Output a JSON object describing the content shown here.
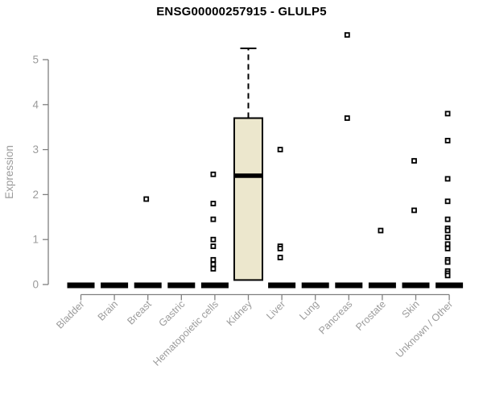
{
  "chart_data": {
    "type": "boxplot",
    "title": "ENSG00000257915 - GLULP5",
    "ylabel": "Expression",
    "xlabel": "",
    "ylim": [
      0,
      5.6
    ],
    "yticks": [
      0,
      1,
      2,
      3,
      4,
      5
    ],
    "grid": false,
    "legend": "none",
    "categories": [
      "Bladder",
      "Brain",
      "Breast",
      "Gastric",
      "Hematopoietic cells",
      "Kidney",
      "Liver",
      "Lung",
      "Pancreas",
      "Prostate",
      "Skin",
      "Unknown / Other"
    ],
    "series": [
      {
        "category": "Bladder",
        "q1": 0,
        "median": 0,
        "q3": 0,
        "whisker_low": 0,
        "whisker_high": 0,
        "outliers": []
      },
      {
        "category": "Brain",
        "q1": 0,
        "median": 0,
        "q3": 0,
        "whisker_low": 0,
        "whisker_high": 0,
        "outliers": []
      },
      {
        "category": "Breast",
        "q1": 0,
        "median": 0,
        "q3": 0,
        "whisker_low": 0,
        "whisker_high": 0,
        "outliers": [
          1.9
        ]
      },
      {
        "category": "Gastric",
        "q1": 0,
        "median": 0,
        "q3": 0,
        "whisker_low": 0,
        "whisker_high": 0,
        "outliers": []
      },
      {
        "category": "Hematopoietic cells",
        "q1": 0,
        "median": 0,
        "q3": 0,
        "whisker_low": 0,
        "whisker_high": 0,
        "outliers": [
          2.45,
          1.8,
          1.45,
          1.0,
          0.85,
          0.55,
          0.45,
          0.35
        ]
      },
      {
        "category": "Kidney",
        "q1": 0.1,
        "median": 2.42,
        "q3": 3.7,
        "whisker_low": 0.1,
        "whisker_high": 5.25,
        "outliers": []
      },
      {
        "category": "Liver",
        "q1": 0,
        "median": 0,
        "q3": 0,
        "whisker_low": 0,
        "whisker_high": 0,
        "outliers": [
          3.0,
          0.85,
          0.8,
          0.6
        ]
      },
      {
        "category": "Lung",
        "q1": 0,
        "median": 0,
        "q3": 0,
        "whisker_low": 0,
        "whisker_high": 0,
        "outliers": []
      },
      {
        "category": "Pancreas",
        "q1": 0,
        "median": 0,
        "q3": 0,
        "whisker_low": 0,
        "whisker_high": 0,
        "outliers": [
          5.55,
          3.7
        ]
      },
      {
        "category": "Prostate",
        "q1": 0,
        "median": 0,
        "q3": 0,
        "whisker_low": 0,
        "whisker_high": 0,
        "outliers": [
          1.2
        ]
      },
      {
        "category": "Skin",
        "q1": 0,
        "median": 0,
        "q3": 0,
        "whisker_low": 0,
        "whisker_high": 0,
        "outliers": [
          2.75,
          1.65
        ]
      },
      {
        "category": "Unknown / Other",
        "q1": 0,
        "median": 0,
        "q3": 0,
        "whisker_low": 0,
        "whisker_high": 0,
        "outliers": [
          3.8,
          3.2,
          2.35,
          1.85,
          1.45,
          1.25,
          1.2,
          1.05,
          0.9,
          0.8,
          0.55,
          0.5,
          0.3,
          0.25,
          0.2
        ]
      }
    ],
    "colors": {
      "box_fill": "#ECE7CD",
      "box_border": "#000000",
      "collapsed_bar": "#000000",
      "axis_line": "#808080",
      "tick_text": "#9b9b9b",
      "title_text": "#000000",
      "background": "#ffffff"
    }
  }
}
